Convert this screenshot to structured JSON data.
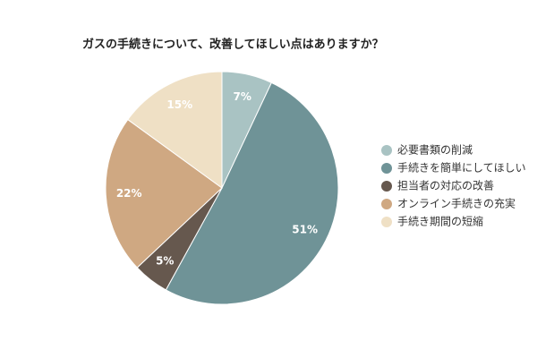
{
  "chart_data": {
    "type": "pie",
    "title": "ガスの手続きについて、改善してほしい点はありますか？",
    "categories": [
      "必要書類の削減",
      "手続きを簡単にしてほしい",
      "担当者の対応の改善",
      "オンライン手続きの充実",
      "手続き期間の短縮"
    ],
    "values": [
      7,
      51,
      5,
      22,
      15
    ],
    "value_labels": [
      "7%",
      "51%",
      "5%",
      "22%",
      "15%"
    ],
    "colors": [
      "#a9c3c3",
      "#6f9397",
      "#66584e",
      "#cfa882",
      "#efe0c5"
    ],
    "legend": "right"
  }
}
